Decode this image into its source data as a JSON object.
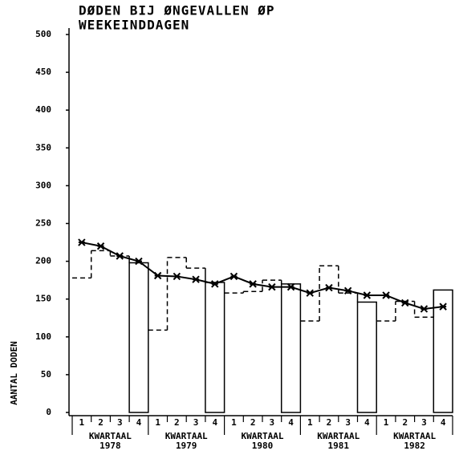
{
  "chart_data": {
    "type": "bar",
    "title": [
      "DØDEN BIJ ØNGEVALLEN ØP",
      "WEEKEINDDAGEN"
    ],
    "y_label": "AANTAL DODEN",
    "categories": [
      "1",
      "2",
      "3",
      "4",
      "1",
      "2",
      "3",
      "4",
      "1",
      "2",
      "3",
      "4",
      "1",
      "2",
      "3",
      "4",
      "1",
      "2",
      "3",
      "4"
    ],
    "groups": [
      {
        "name": "KWARTAAL",
        "year": "1978"
      },
      {
        "name": "KWARTAAL",
        "year": "1979"
      },
      {
        "name": "KWARTAAL",
        "year": "1980"
      },
      {
        "name": "KWARTAAL",
        "year": "1981"
      },
      {
        "name": "KWARTAAL",
        "year": "1982"
      }
    ],
    "values": [
      178,
      214,
      207,
      198,
      109,
      205,
      191,
      172,
      158,
      160,
      175,
      170,
      121,
      194,
      158,
      146,
      121,
      147,
      126,
      162
    ],
    "trend": [
      225,
      220,
      207,
      200,
      181,
      180,
      176,
      170,
      180,
      170,
      166,
      166,
      158,
      165,
      161,
      155,
      155,
      145,
      137,
      140
    ],
    "color": "#000000",
    "ylim": [
      0,
      500
    ],
    "yticks": [
      0,
      50,
      100,
      150,
      200,
      250,
      300,
      350,
      400,
      450,
      500
    ]
  }
}
